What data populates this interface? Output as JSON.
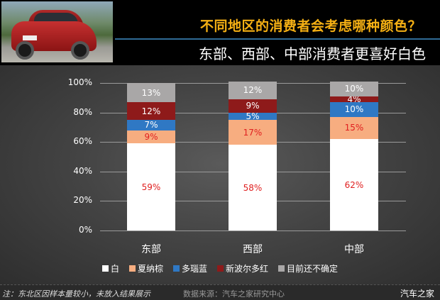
{
  "header": {
    "title": "不同地区的消费者会考虑哪种颜色？",
    "subtitle": "东部、西部、中部消费者更喜好白色",
    "title_color": "#f5b014",
    "photo_alt": "red SUV photo"
  },
  "footer": {
    "note": "注：东北区因样本量较小，未放入结果展示",
    "source": "数据来源：汽车之家研究中心",
    "brand": "汽车之家"
  },
  "chart_data": {
    "type": "bar",
    "stacked": true,
    "title": "不同地区的消费者会考虑哪种颜色？",
    "subtitle": "东部、西部、中部消费者更喜好白色",
    "xlabel": "",
    "ylabel": "",
    "ylim": [
      0,
      100
    ],
    "yticks": [
      "0%",
      "20%",
      "40%",
      "60%",
      "80%",
      "100%"
    ],
    "grid": true,
    "legend_position": "bottom",
    "categories": [
      "东部",
      "西部",
      "中部"
    ],
    "series": [
      {
        "name": "白",
        "color": "#ffffff",
        "label_color": "#e02020",
        "values": [
          59,
          58,
          62
        ]
      },
      {
        "name": "夏纳棕",
        "color": "#f7ad80",
        "label_color": "#e02020",
        "values": [
          9,
          17,
          15
        ]
      },
      {
        "name": "多瑙蓝",
        "color": "#2f78c4",
        "label_color": "#ffffff",
        "values": [
          7,
          5,
          10
        ]
      },
      {
        "name": "新波尔多红",
        "color": "#8e1a1a",
        "label_color": "#ffffff",
        "values": [
          12,
          9,
          4
        ]
      },
      {
        "name": "目前还不确定",
        "color": "#a9a7a7",
        "label_color": "#ffffff",
        "values": [
          13,
          12,
          10
        ]
      }
    ],
    "value_labels": {
      "东部": [
        "59%",
        "9%",
        "7%",
        "12%",
        "13%"
      ],
      "西部": [
        "58%",
        "17%",
        "5%",
        "9%",
        "12%"
      ],
      "中部": [
        "62%",
        "15%",
        "10%",
        "4%",
        "10%"
      ]
    }
  }
}
